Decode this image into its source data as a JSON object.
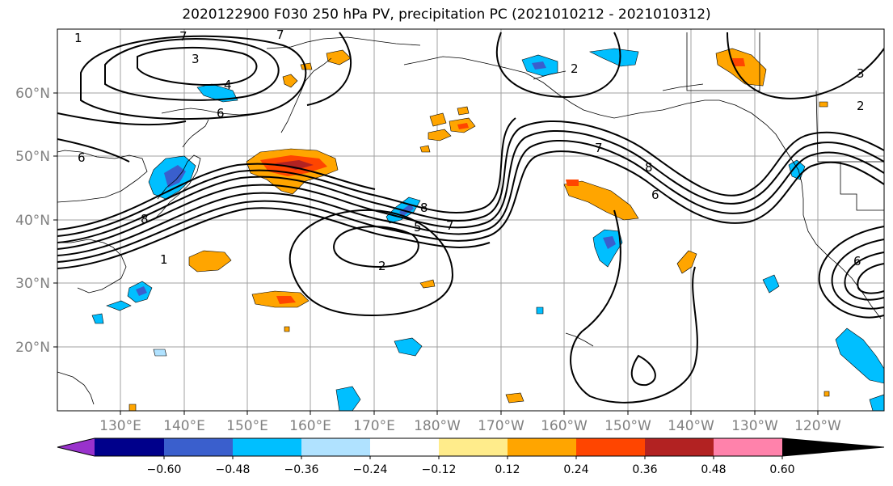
{
  "title": "2020122900 F030 250 hPa PV, precipitation PC (2021010212 - 2021010312)",
  "lat_ticks": [
    "60°N",
    "50°N",
    "40°N",
    "30°N",
    "20°N"
  ],
  "lon_ticks": [
    "130°E",
    "140°E",
    "150°E",
    "160°E",
    "170°E",
    "180°W",
    "170°W",
    "160°W",
    "150°W",
    "140°W",
    "130°W",
    "120°W"
  ],
  "colorbar": {
    "ticks": [
      "−0.60",
      "−0.48",
      "−0.36",
      "−0.24",
      "−0.12",
      "0.12",
      "0.24",
      "0.36",
      "0.48",
      "0.60"
    ],
    "colors": [
      "#9932cc",
      "#00008b",
      "#3a5fcd",
      "#00bfff",
      "#b0e2ff",
      "#ffffff",
      "#ffec8b",
      "#ffa500",
      "#ff4500",
      "#b22222",
      "#ff82ab"
    ]
  },
  "contour_labels": [
    "3",
    "4",
    "6",
    "6",
    "8",
    "1",
    "2",
    "5",
    "8",
    "7",
    "7",
    "8",
    "6",
    "3",
    "2",
    "6",
    "7",
    "7",
    "2",
    "1"
  ]
}
